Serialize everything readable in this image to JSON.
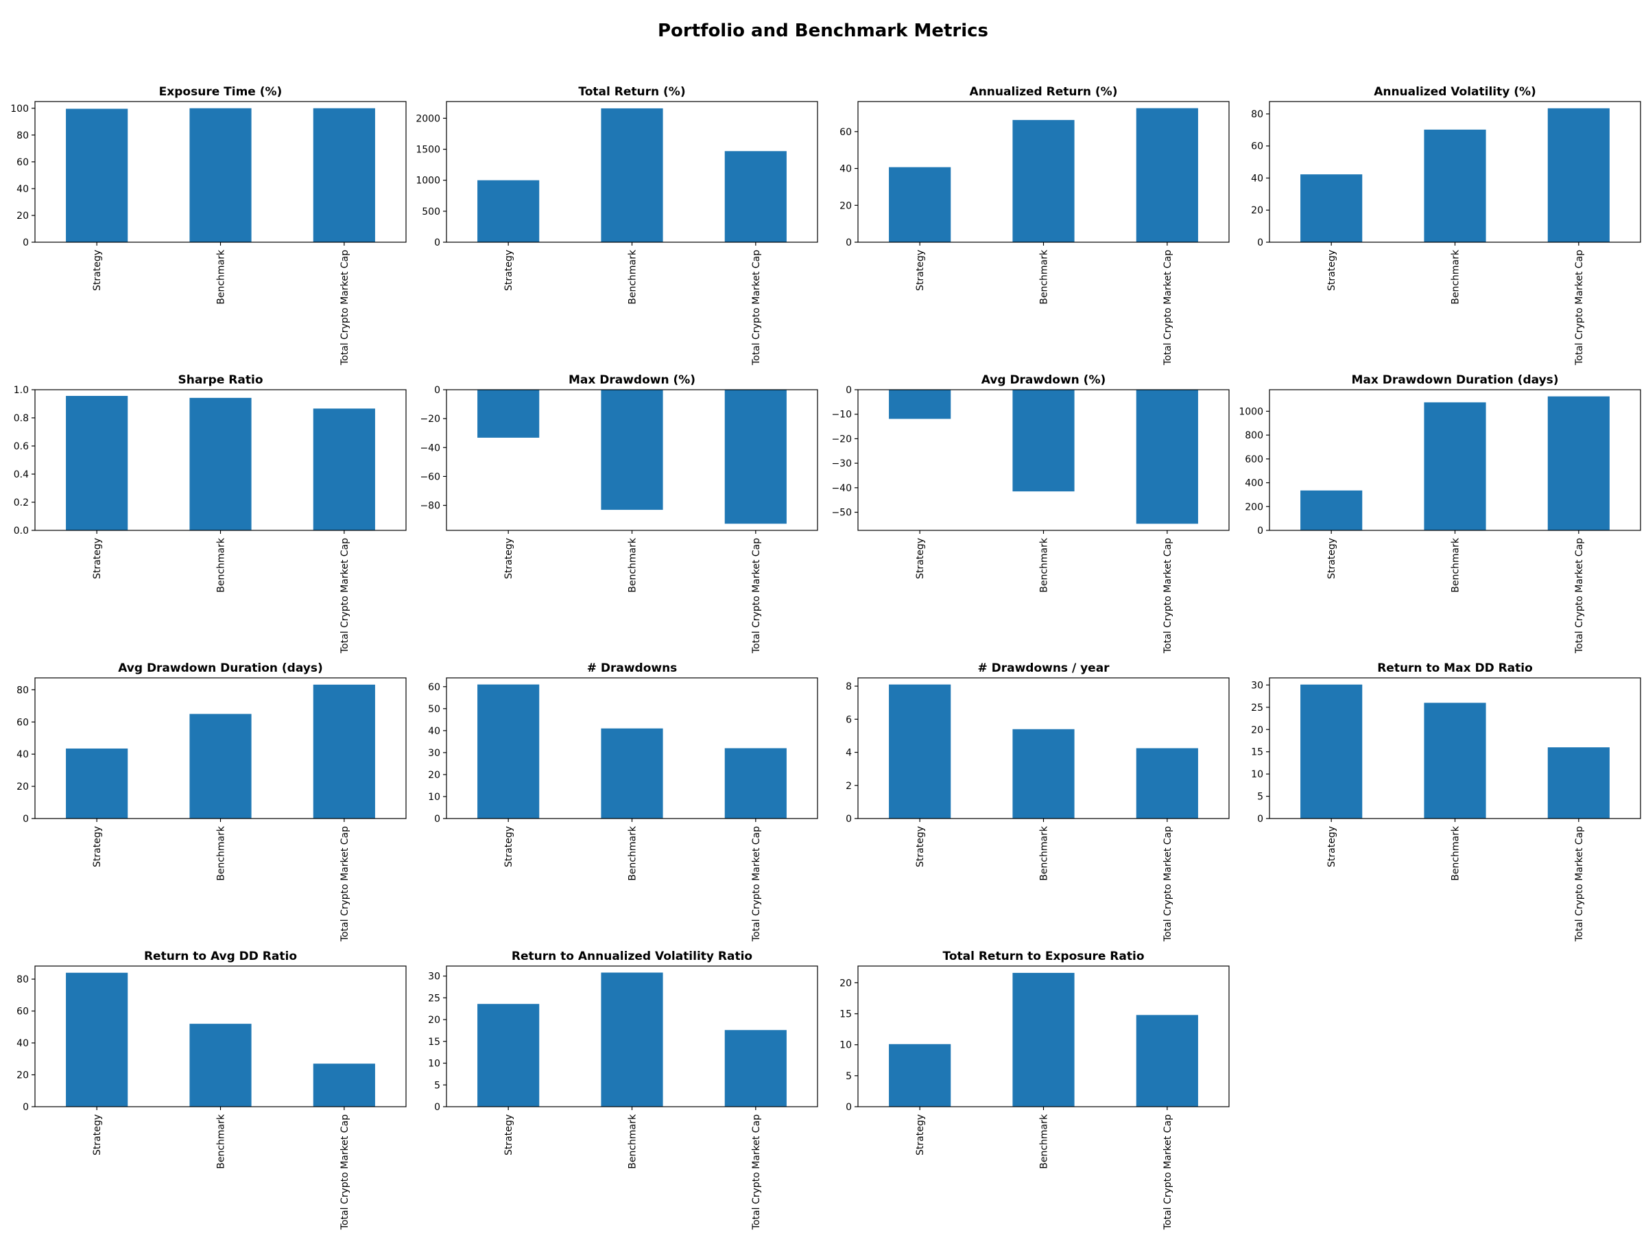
{
  "suptitle": "Portfolio and Benchmark Metrics",
  "bar_color": "#1f77b4",
  "chart_data": [
    {
      "type": "bar",
      "title": "Exposure Time (%)",
      "categories": [
        "Strategy",
        "Benchmark",
        "Total Crypto Market Cap"
      ],
      "values": [
        99.6,
        100,
        100
      ],
      "ylim": [
        0,
        105
      ],
      "yticks": [
        0,
        20,
        40,
        60,
        80,
        100
      ],
      "ytick_labels": [
        "0",
        "20",
        "40",
        "60",
        "80",
        "100"
      ]
    },
    {
      "type": "bar",
      "title": "Total Return (%)",
      "categories": [
        "Strategy",
        "Benchmark",
        "Total Crypto Market Cap"
      ],
      "values": [
        1000,
        2160,
        1470
      ],
      "ylim": [
        0,
        2270
      ],
      "yticks": [
        0,
        500,
        1000,
        1500,
        2000
      ],
      "ytick_labels": [
        "0",
        "500",
        "1000",
        "1500",
        "2000"
      ]
    },
    {
      "type": "bar",
      "title": "Annualized Return (%)",
      "categories": [
        "Strategy",
        "Benchmark",
        "Total Crypto Market Cap"
      ],
      "values": [
        40.7,
        66.3,
        72.7
      ],
      "ylim": [
        0,
        76.3
      ],
      "yticks": [
        0,
        20,
        40,
        60
      ],
      "ytick_labels": [
        "0",
        "20",
        "40",
        "60"
      ]
    },
    {
      "type": "bar",
      "title": "Annualized Volatility (%)",
      "categories": [
        "Strategy",
        "Benchmark",
        "Total Crypto Market Cap"
      ],
      "values": [
        42.3,
        70.2,
        83.5
      ],
      "ylim": [
        0,
        87.7
      ],
      "yticks": [
        0,
        20,
        40,
        60,
        80
      ],
      "ytick_labels": [
        "0",
        "20",
        "40",
        "60",
        "80"
      ]
    },
    {
      "type": "bar",
      "title": "Sharpe Ratio",
      "categories": [
        "Strategy",
        "Benchmark",
        "Total Crypto Market Cap"
      ],
      "values": [
        0.956,
        0.942,
        0.866
      ],
      "ylim": [
        0,
        1.0
      ],
      "yticks": [
        0,
        0.2,
        0.4,
        0.6,
        0.8,
        1.0
      ],
      "ytick_labels": [
        "0.0",
        "0.2",
        "0.4",
        "0.6",
        "0.8",
        "1.0"
      ]
    },
    {
      "type": "bar",
      "title": "Max Drawdown (%)",
      "categories": [
        "Strategy",
        "Benchmark",
        "Total Crypto Market Cap"
      ],
      "values": [
        -33.2,
        -83.1,
        -92.7
      ],
      "ylim": [
        -97.3,
        0
      ],
      "yticks": [
        0,
        -20,
        -40,
        -60,
        -80
      ],
      "ytick_labels": [
        "0",
        "−20",
        "−40",
        "−60",
        "−80"
      ]
    },
    {
      "type": "bar",
      "title": "Avg Drawdown (%)",
      "categories": [
        "Strategy",
        "Benchmark",
        "Total Crypto Market Cap"
      ],
      "values": [
        -11.9,
        -41.5,
        -54.7
      ],
      "ylim": [
        -57.4,
        0
      ],
      "yticks": [
        0,
        -10,
        -20,
        -30,
        -40,
        -50
      ],
      "ytick_labels": [
        "0",
        "−10",
        "−20",
        "−30",
        "−40",
        "−50"
      ]
    },
    {
      "type": "bar",
      "title": "Max Drawdown Duration (days)",
      "categories": [
        "Strategy",
        "Benchmark",
        "Total Crypto Market Cap"
      ],
      "values": [
        335,
        1075,
        1125
      ],
      "ylim": [
        0,
        1181
      ],
      "yticks": [
        0,
        200,
        400,
        600,
        800,
        1000
      ],
      "ytick_labels": [
        "0",
        "200",
        "400",
        "600",
        "800",
        "1000"
      ]
    },
    {
      "type": "bar",
      "title": "Avg Drawdown Duration (days)",
      "categories": [
        "Strategy",
        "Benchmark",
        "Total Crypto Market Cap"
      ],
      "values": [
        43.5,
        65,
        83.2
      ],
      "ylim": [
        0,
        87.4
      ],
      "yticks": [
        0,
        20,
        40,
        60,
        80
      ],
      "ytick_labels": [
        "0",
        "20",
        "40",
        "60",
        "80"
      ]
    },
    {
      "type": "bar",
      "title": "# Drawdowns",
      "categories": [
        "Strategy",
        "Benchmark",
        "Total Crypto Market Cap"
      ],
      "values": [
        61,
        41,
        32
      ],
      "ylim": [
        0,
        64
      ],
      "yticks": [
        0,
        10,
        20,
        30,
        40,
        50,
        60
      ],
      "ytick_labels": [
        "0",
        "10",
        "20",
        "30",
        "40",
        "50",
        "60"
      ]
    },
    {
      "type": "bar",
      "title": "# Drawdowns / year",
      "categories": [
        "Strategy",
        "Benchmark",
        "Total Crypto Market Cap"
      ],
      "values": [
        8.1,
        5.4,
        4.25
      ],
      "ylim": [
        0,
        8.5
      ],
      "yticks": [
        0,
        2,
        4,
        6,
        8
      ],
      "ytick_labels": [
        "0",
        "2",
        "4",
        "6",
        "8"
      ]
    },
    {
      "type": "bar",
      "title": "Return to Max DD Ratio",
      "categories": [
        "Strategy",
        "Benchmark",
        "Total Crypto Market Cap"
      ],
      "values": [
        30.1,
        26,
        16
      ],
      "ylim": [
        0,
        31.6
      ],
      "yticks": [
        0,
        5,
        10,
        15,
        20,
        25,
        30
      ],
      "ytick_labels": [
        "0",
        "5",
        "10",
        "15",
        "20",
        "25",
        "30"
      ]
    },
    {
      "type": "bar",
      "title": "Return to Avg DD Ratio",
      "categories": [
        "Strategy",
        "Benchmark",
        "Total Crypto Market Cap"
      ],
      "values": [
        84,
        52,
        27
      ],
      "ylim": [
        0,
        88.2
      ],
      "yticks": [
        0,
        20,
        40,
        60,
        80
      ],
      "ytick_labels": [
        "0",
        "20",
        "40",
        "60",
        "80"
      ]
    },
    {
      "type": "bar",
      "title": "Return to Annualized Volatility Ratio",
      "categories": [
        "Strategy",
        "Benchmark",
        "Total Crypto Market Cap"
      ],
      "values": [
        23.6,
        30.8,
        17.6
      ],
      "ylim": [
        0,
        32.3
      ],
      "yticks": [
        0,
        5,
        10,
        15,
        20,
        25,
        30
      ],
      "ytick_labels": [
        "0",
        "5",
        "10",
        "15",
        "20",
        "25",
        "30"
      ]
    },
    {
      "type": "bar",
      "title": "Total Return to Exposure Ratio",
      "categories": [
        "Strategy",
        "Benchmark",
        "Total Crypto Market Cap"
      ],
      "values": [
        10.1,
        21.6,
        14.8
      ],
      "ylim": [
        0,
        22.7
      ],
      "yticks": [
        0,
        5,
        10,
        15,
        20
      ],
      "ytick_labels": [
        "0",
        "5",
        "10",
        "15",
        "20"
      ]
    }
  ]
}
